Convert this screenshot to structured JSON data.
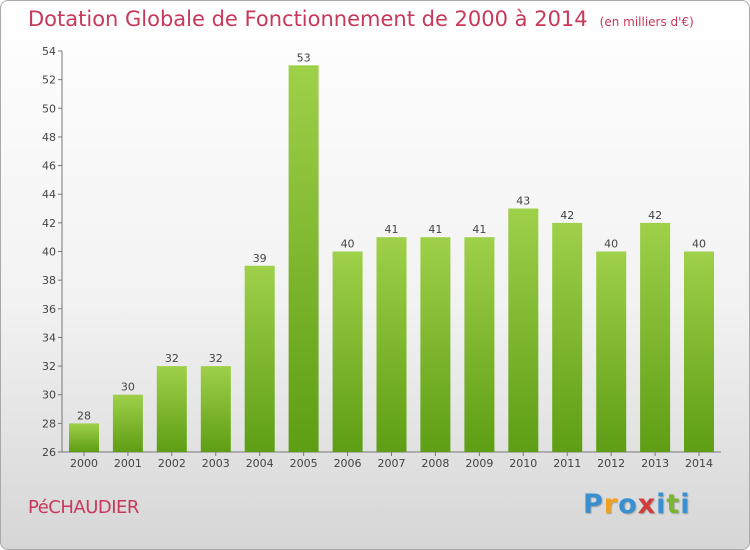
{
  "title": {
    "main": "Dotation Globale de Fonctionnement de 2000 à 2014",
    "unit": "(en milliers d'€)"
  },
  "commune": "PéCHAUDIER",
  "logo": {
    "letters": [
      "P",
      "r",
      "o",
      "x",
      "i",
      "t",
      "i"
    ],
    "colors": [
      "#3a8fd0",
      "#f0a020",
      "#3a8fd0",
      "#d23c3c",
      "#3a8fd0",
      "#7ab632",
      "#3a8fd0"
    ]
  },
  "chart_data": {
    "type": "bar",
    "title": "Dotation Globale de Fonctionnement de 2000 à 2014",
    "categories": [
      "2000",
      "2001",
      "2002",
      "2003",
      "2004",
      "2005",
      "2006",
      "2007",
      "2008",
      "2009",
      "2010",
      "2011",
      "2012",
      "2013",
      "2014"
    ],
    "values": [
      28,
      30,
      32,
      32,
      39,
      53,
      40,
      41,
      41,
      41,
      43,
      42,
      40,
      42,
      40
    ],
    "ylim": [
      26,
      54
    ],
    "yticks": [
      26,
      28,
      30,
      32,
      34,
      36,
      38,
      40,
      42,
      44,
      46,
      48,
      50,
      52,
      54
    ],
    "grid": false,
    "bar_color_top": "#9fd04a",
    "bar_color_bottom": "#5e9e14",
    "xlabel": "",
    "ylabel": ""
  }
}
